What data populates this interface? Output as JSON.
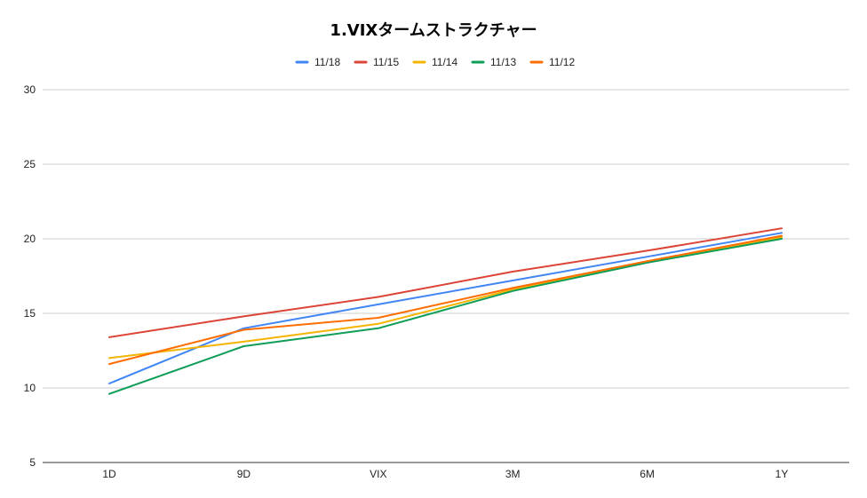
{
  "chart_data": {
    "type": "line",
    "title": "1.VIXタームストラクチャー",
    "categories": [
      "1D",
      "9D",
      "VIX",
      "3M",
      "6M",
      "1Y"
    ],
    "ylim": [
      5,
      30
    ],
    "yticks": [
      5,
      10,
      15,
      20,
      25,
      30
    ],
    "grid": true,
    "legend_position": "top",
    "series": [
      {
        "name": "11/18",
        "color": "#4285F4",
        "values": [
          10.3,
          14.0,
          15.6,
          17.2,
          18.8,
          20.4
        ]
      },
      {
        "name": "11/15",
        "color": "#DB4437",
        "values": [
          13.4,
          14.8,
          16.1,
          17.8,
          19.2,
          20.7
        ]
      },
      {
        "name": "11/14",
        "color": "#F4B400",
        "values": [
          12.0,
          13.1,
          14.3,
          16.6,
          18.5,
          20.1
        ]
      },
      {
        "name": "11/13",
        "color": "#0F9D58",
        "values": [
          9.6,
          12.8,
          14.0,
          16.5,
          18.4,
          20.0
        ]
      },
      {
        "name": "11/12",
        "color": "#FF6D01",
        "values": [
          11.6,
          13.9,
          14.7,
          16.7,
          18.5,
          20.2
        ]
      }
    ]
  }
}
